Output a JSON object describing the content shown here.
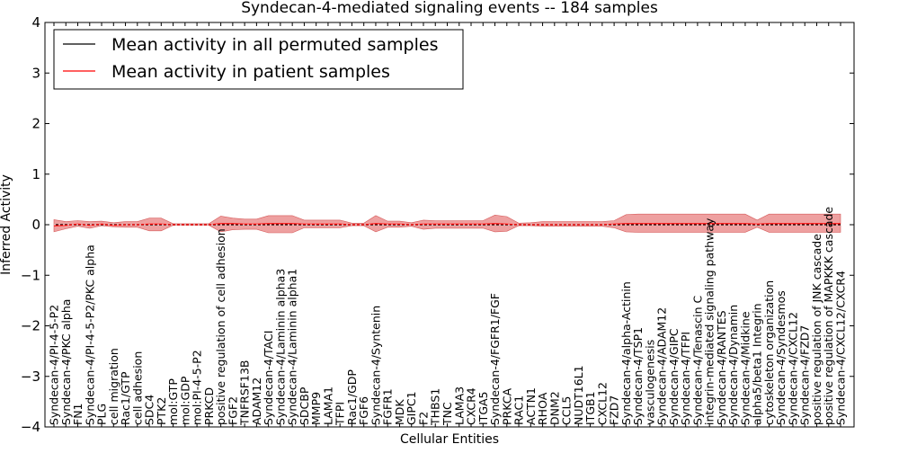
{
  "chart_data": {
    "type": "line",
    "title": "Syndecan-4-mediated signaling events -- 184 samples",
    "xlabel": "Cellular Entities",
    "ylabel": "Inferred Activity",
    "ylim": [
      -4,
      4
    ],
    "yticks": [
      -4,
      -3,
      -2,
      -1,
      0,
      1,
      2,
      3,
      4
    ],
    "yticklabels": [
      "−4",
      "−3",
      "−2",
      "−1",
      "0",
      "1",
      "2",
      "3",
      "4"
    ],
    "legend_position": "top-left",
    "colors": {
      "permuted": "#000000",
      "patient": "#ff0000",
      "band": "#e88080"
    },
    "categories": [
      "Syndecan-4/PI-4-5-P2",
      "Syndecan-4/PKC alpha",
      "FN1",
      "Syndecan-4/PI-4-5-P2/PKC alpha",
      "PLG",
      "cell migration",
      "Rac1/GTP",
      "cell adhesion",
      "SDC4",
      "PTK2",
      "mol:GTP",
      "mol:GDP",
      "mol:PI-4-5-P2",
      "PRKCD",
      "positive regulation of cell adhesion",
      "FGF2",
      "TNFRSF13B",
      "ADAM12",
      "Syndecan-4/TACI",
      "Syndecan-4/Laminin alpha3",
      "Syndecan-4/Laminin alpha1",
      "SDCBP",
      "MMP9",
      "LAMA1",
      "TFPI",
      "Rac1/GDP",
      "FGF6",
      "Syndecan-4/Syntenin",
      "FGFR1",
      "MDK",
      "GIPC1",
      "F2",
      "THBS1",
      "TNC",
      "LAMA3",
      "CXCR4",
      "ITGA5",
      "Syndecan-4/FGFR1/FGF",
      "PRKCA",
      "RAC1",
      "ACTN1",
      "RHOA",
      "DNM2",
      "CCL5",
      "NUDT16L1",
      "ITGB1",
      "CXCL12",
      "FZD7",
      "Syndecan-4/alpha-Actinin",
      "Syndecan-4/TSP1",
      "vasculogenesis",
      "Syndecan-4/ADAM12",
      "Syndecan-4/GIPC",
      "Syndecan-4/TFPI",
      "Syndecan-4/Tenascin C",
      "integrin-mediated signaling pathway",
      "Syndecan-4/RANTES",
      "Syndecan-4/Dynamin",
      "Syndecan-4/Midkine",
      "alpha5/beta1 Integrin",
      "cytoskeleton organization",
      "Syndecan-4/Syndesmos",
      "Syndecan-4/CXCL12",
      "Syndecan-4/FZD7",
      "positive regulation of JNK cascade",
      "positive regulation of MAPKKK cascade",
      "Syndecan-4/CXCL12/CXCR4"
    ],
    "series": [
      {
        "name": "Mean activity in all permuted samples",
        "values": [
          0,
          0,
          0,
          0,
          0,
          0,
          0,
          0,
          0,
          0,
          0,
          0,
          0,
          0,
          0,
          0,
          0,
          0,
          0,
          0,
          0,
          0,
          0,
          0,
          0,
          0,
          0,
          0,
          0,
          0,
          0,
          0,
          0,
          0,
          0,
          0,
          0,
          0,
          0,
          0,
          0,
          0,
          0,
          0,
          0,
          0,
          0,
          0,
          0,
          0,
          0,
          0,
          0,
          0,
          0,
          0,
          0,
          0,
          0,
          0,
          0,
          0,
          0,
          0,
          0,
          0,
          0
        ]
      },
      {
        "name": "Mean activity in patient samples",
        "values": [
          -0.02,
          -0.01,
          0.01,
          -0.01,
          0.01,
          -0.01,
          0.0,
          0.0,
          0.01,
          0.01,
          0.0,
          0.0,
          0.0,
          0.0,
          0.02,
          0.02,
          0.01,
          0.01,
          0.02,
          0.02,
          0.02,
          0.01,
          0.01,
          0.01,
          0.01,
          0.0,
          0.0,
          0.02,
          0.01,
          0.01,
          0.0,
          0.01,
          0.01,
          0.01,
          0.01,
          0.01,
          0.01,
          0.02,
          0.01,
          0.0,
          0.0,
          0.0,
          0.0,
          0.0,
          0.0,
          0.0,
          0.0,
          0.01,
          0.02,
          0.02,
          0.02,
          0.02,
          0.02,
          0.02,
          0.02,
          0.02,
          0.02,
          0.02,
          0.02,
          0.01,
          0.02,
          0.02,
          0.02,
          0.02,
          0.02,
          0.02,
          0.02
        ]
      }
    ],
    "patient_band": {
      "name": "patient sample spread",
      "lower": [
        -0.14,
        -0.08,
        -0.03,
        -0.07,
        -0.02,
        -0.04,
        -0.05,
        -0.05,
        -0.12,
        -0.12,
        -0.01,
        -0.01,
        -0.01,
        -0.01,
        -0.14,
        -0.1,
        -0.09,
        -0.09,
        -0.16,
        -0.16,
        -0.16,
        -0.06,
        -0.06,
        -0.06,
        -0.06,
        -0.02,
        -0.02,
        -0.14,
        -0.05,
        -0.05,
        -0.03,
        -0.09,
        -0.07,
        -0.07,
        -0.07,
        -0.07,
        -0.07,
        -0.14,
        -0.13,
        -0.02,
        -0.02,
        -0.03,
        -0.03,
        -0.03,
        -0.03,
        -0.03,
        -0.03,
        -0.06,
        -0.14,
        -0.15,
        -0.15,
        -0.15,
        -0.15,
        -0.15,
        -0.15,
        -0.15,
        -0.15,
        -0.15,
        -0.15,
        -0.05,
        -0.15,
        -0.15,
        -0.15,
        -0.15,
        -0.15,
        -0.15,
        -0.15
      ],
      "upper": [
        0.1,
        0.06,
        0.08,
        0.06,
        0.07,
        0.04,
        0.06,
        0.06,
        0.13,
        0.13,
        0.02,
        0.02,
        0.02,
        0.02,
        0.17,
        0.13,
        0.11,
        0.11,
        0.18,
        0.18,
        0.18,
        0.09,
        0.09,
        0.09,
        0.09,
        0.03,
        0.03,
        0.18,
        0.07,
        0.07,
        0.04,
        0.09,
        0.08,
        0.08,
        0.08,
        0.08,
        0.08,
        0.19,
        0.16,
        0.03,
        0.04,
        0.06,
        0.06,
        0.06,
        0.06,
        0.06,
        0.06,
        0.08,
        0.2,
        0.21,
        0.21,
        0.21,
        0.21,
        0.21,
        0.21,
        0.21,
        0.21,
        0.21,
        0.21,
        0.09,
        0.21,
        0.21,
        0.21,
        0.21,
        0.21,
        0.21,
        0.21
      ]
    }
  }
}
